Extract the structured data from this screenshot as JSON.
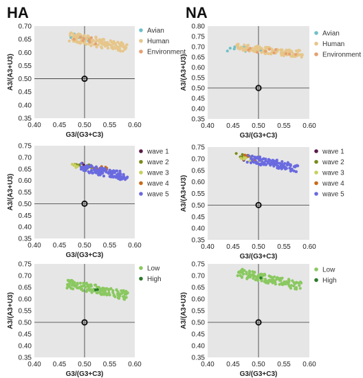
{
  "column_titles": [
    "HA",
    "NA"
  ],
  "colors": {
    "plot_bg": "#e6e6e6",
    "avian": "#6fc0c8",
    "human": "#e6c68a",
    "environment": "#e6a070",
    "wave_1": "#5a1a4a",
    "wave_2": "#7a8a1a",
    "wave_3": "#c8d060",
    "wave_4": "#c86a1a",
    "wave_5": "#6a6ae0",
    "low": "#8ac860",
    "high": "#2a7a2a"
  },
  "chart_data": [
    {
      "id": "ha-host",
      "type": "scatter",
      "title": "HA",
      "xlabel": "G3/(G3+C3)",
      "ylabel": "A3/(A3+U3)",
      "xlim": [
        0.4,
        0.6
      ],
      "ylim": [
        0.35,
        0.7
      ],
      "xticks": [
        "0.40",
        "0.45",
        "0.50",
        "0.55",
        "0.60"
      ],
      "yticks": [
        "0.35",
        "0.40",
        "0.45",
        "0.50",
        "0.55",
        "0.60",
        "0.65",
        "0.70"
      ],
      "reference_point": [
        0.5,
        0.5
      ],
      "legend": "right",
      "series": [
        {
          "name": "Avian",
          "color": "#6fc0c8",
          "x0": 0.47,
          "x1": 0.53,
          "y0": 0.665,
          "y1": 0.645,
          "n": 14,
          "spread": 0.012
        },
        {
          "name": "Human",
          "color": "#e6c68a",
          "x0": 0.47,
          "x1": 0.585,
          "y0": 0.66,
          "y1": 0.615,
          "n": 130,
          "spread": 0.018
        },
        {
          "name": "Environment",
          "color": "#e6a070",
          "x0": 0.48,
          "x1": 0.53,
          "y0": 0.66,
          "y1": 0.64,
          "n": 8,
          "spread": 0.012
        }
      ]
    },
    {
      "id": "na-host",
      "type": "scatter",
      "title": "NA",
      "xlabel": "G3/(G3+C3)",
      "ylabel": "A3/(A3+U3)",
      "xlim": [
        0.4,
        0.6
      ],
      "ylim": [
        0.35,
        0.8
      ],
      "xticks": [
        "0.40",
        "0.45",
        "0.50",
        "0.55",
        "0.60"
      ],
      "yticks": [
        "0.35",
        "0.40",
        "0.45",
        "0.50",
        "0.55",
        "0.60",
        "0.65",
        "0.70",
        "0.75",
        "0.80"
      ],
      "reference_point": [
        0.5,
        0.5
      ],
      "legend": "right",
      "series": [
        {
          "name": "Avian",
          "color": "#6fc0c8",
          "x0": 0.43,
          "x1": 0.52,
          "y0": 0.69,
          "y1": 0.69,
          "n": 12,
          "spread": 0.012
        },
        {
          "name": "Human",
          "color": "#e6c68a",
          "x0": 0.455,
          "x1": 0.585,
          "y0": 0.7,
          "y1": 0.665,
          "n": 130,
          "spread": 0.018
        },
        {
          "name": "Environment",
          "color": "#e6a070",
          "x0": 0.48,
          "x1": 0.58,
          "y0": 0.69,
          "y1": 0.66,
          "n": 10,
          "spread": 0.012
        }
      ]
    },
    {
      "id": "ha-wave",
      "type": "scatter",
      "xlabel": "G3/(G3+C3)",
      "ylabel": "A3/(A3+U3)",
      "xlim": [
        0.4,
        0.6
      ],
      "ylim": [
        0.35,
        0.75
      ],
      "xticks": [
        "0.40",
        "0.45",
        "0.50",
        "0.55",
        "0.60"
      ],
      "yticks": [
        "0.35",
        "0.40",
        "0.45",
        "0.50",
        "0.55",
        "0.60",
        "0.65",
        "0.70",
        "0.75"
      ],
      "reference_point": [
        0.5,
        0.5
      ],
      "legend": "right",
      "series": [
        {
          "name": "wave 1",
          "color": "#5a1a4a",
          "x0": 0.49,
          "x1": 0.51,
          "y0": 0.665,
          "y1": 0.66,
          "n": 4,
          "spread": 0.01
        },
        {
          "name": "wave 2",
          "color": "#7a8a1a",
          "x0": 0.48,
          "x1": 0.52,
          "y0": 0.665,
          "y1": 0.655,
          "n": 8,
          "spread": 0.01
        },
        {
          "name": "wave 3",
          "color": "#c8d060",
          "x0": 0.465,
          "x1": 0.5,
          "y0": 0.665,
          "y1": 0.66,
          "n": 8,
          "spread": 0.008
        },
        {
          "name": "wave 4",
          "color": "#c86a1a",
          "x0": 0.51,
          "x1": 0.555,
          "y0": 0.66,
          "y1": 0.645,
          "n": 10,
          "spread": 0.01
        },
        {
          "name": "wave 5",
          "color": "#6a6ae0",
          "x0": 0.49,
          "x1": 0.585,
          "y0": 0.66,
          "y1": 0.615,
          "n": 110,
          "spread": 0.017
        }
      ]
    },
    {
      "id": "na-wave",
      "type": "scatter",
      "xlabel": "G3/(G3+C3)",
      "ylabel": "A3/(A3+U3)",
      "xlim": [
        0.4,
        0.6
      ],
      "ylim": [
        0.35,
        0.75
      ],
      "xticks": [
        "0.40",
        "0.45",
        "0.50",
        "0.55",
        "0.60"
      ],
      "yticks": [
        "0.35",
        "0.40",
        "0.45",
        "0.50",
        "0.55",
        "0.60",
        "0.65",
        "0.70",
        "0.75"
      ],
      "reference_point": [
        0.5,
        0.5
      ],
      "legend": "right",
      "series": [
        {
          "name": "wave 1",
          "color": "#5a1a4a",
          "x0": 0.46,
          "x1": 0.49,
          "y0": 0.7,
          "y1": 0.695,
          "n": 5,
          "spread": 0.01
        },
        {
          "name": "wave 2",
          "color": "#7a8a1a",
          "x0": 0.455,
          "x1": 0.49,
          "y0": 0.715,
          "y1": 0.7,
          "n": 10,
          "spread": 0.01
        },
        {
          "name": "wave 3",
          "color": "#c8d060",
          "x0": 0.46,
          "x1": 0.485,
          "y0": 0.705,
          "y1": 0.695,
          "n": 6,
          "spread": 0.008
        },
        {
          "name": "wave 4",
          "color": "#c86a1a",
          "x0": 0.47,
          "x1": 0.5,
          "y0": 0.71,
          "y1": 0.7,
          "n": 6,
          "spread": 0.008
        },
        {
          "name": "wave 5",
          "color": "#6a6ae0",
          "x0": 0.48,
          "x1": 0.58,
          "y0": 0.7,
          "y1": 0.655,
          "n": 110,
          "spread": 0.018
        }
      ]
    },
    {
      "id": "ha-level",
      "type": "scatter",
      "xlabel": "G3/(G3+C3)",
      "ylabel": "A3/(A3+U3)",
      "xlim": [
        0.4,
        0.6
      ],
      "ylim": [
        0.35,
        0.75
      ],
      "xticks": [
        "0.40",
        "0.45",
        "0.50",
        "0.55",
        "0.60"
      ],
      "yticks": [
        "0.35",
        "0.40",
        "0.45",
        "0.50",
        "0.55",
        "0.60",
        "0.65",
        "0.70",
        "0.75"
      ],
      "reference_point": [
        0.5,
        0.5
      ],
      "legend": "right",
      "series": [
        {
          "name": "Low",
          "color": "#8ac860",
          "x0": 0.465,
          "x1": 0.585,
          "y0": 0.665,
          "y1": 0.615,
          "n": 140,
          "spread": 0.018
        },
        {
          "name": "High",
          "color": "#2a7a2a",
          "x0": 0.52,
          "x1": 0.54,
          "y0": 0.64,
          "y1": 0.635,
          "n": 2,
          "spread": 0.004
        }
      ]
    },
    {
      "id": "na-level",
      "type": "scatter",
      "xlabel": "G3/(G3+C3)",
      "ylabel": "A3/(A3+U3)",
      "xlim": [
        0.4,
        0.6
      ],
      "ylim": [
        0.35,
        0.75
      ],
      "xticks": [
        "0.40",
        "0.45",
        "0.50",
        "0.55",
        "0.60"
      ],
      "yticks": [
        "0.35",
        "0.40",
        "0.45",
        "0.50",
        "0.55",
        "0.60",
        "0.65",
        "0.70",
        "0.75"
      ],
      "reference_point": [
        0.5,
        0.5
      ],
      "legend": "right",
      "series": [
        {
          "name": "Low",
          "color": "#8ac860",
          "x0": 0.455,
          "x1": 0.585,
          "y0": 0.715,
          "y1": 0.655,
          "n": 140,
          "spread": 0.018
        },
        {
          "name": "High",
          "color": "#2a7a2a",
          "x0": 0.5,
          "x1": 0.51,
          "y0": 0.69,
          "y1": 0.69,
          "n": 1,
          "spread": 0.0
        }
      ]
    }
  ]
}
